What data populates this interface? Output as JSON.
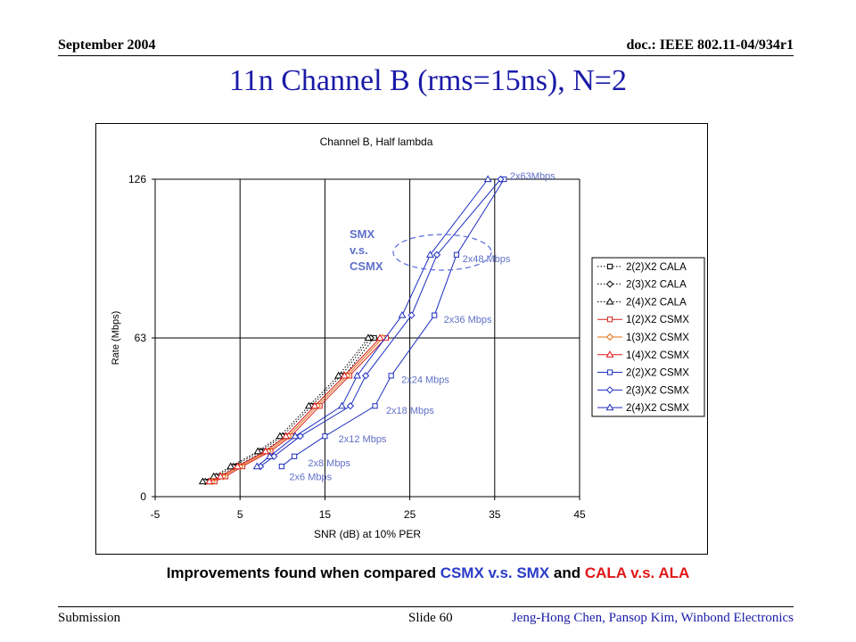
{
  "header": {
    "date": "September 2004",
    "doc_id": "doc.: IEEE 802.11-04/934r1"
  },
  "slide_title": "11n Channel B (rms=15ns), N=2",
  "caption": {
    "parts": [
      {
        "text": "Improvements found when compared ",
        "color": "#000000"
      },
      {
        "text": "CSMX v.s. SMX",
        "color": "#2a3cc8"
      },
      {
        "text": " and ",
        "color": "#000000"
      },
      {
        "text": "CALA v.s. ALA",
        "color": "#e01818"
      }
    ]
  },
  "footer": {
    "left": "Submission",
    "center": "Slide 60",
    "right": "Jeng-Hong Chen, Pansop Kim, Winbond Electronics"
  },
  "colors": {
    "cala": "#000000",
    "csmx1_square": "#d42020",
    "csmx1_diamond": "#e07010",
    "csmx1_triangle": "#e01818",
    "csmx2": "#1f2fc0",
    "annotation": "#6070c8",
    "ellipse": "#5a6ae0"
  },
  "chart_data": {
    "type": "line",
    "title": "Channel B, Half lambda",
    "xlabel": "SNR (dB) at 10% PER",
    "ylabel": "Rate (Mbps)",
    "xlim": [
      -5,
      45
    ],
    "ylim": [
      0,
      126
    ],
    "xticks": [
      -5,
      5,
      15,
      25,
      35,
      45
    ],
    "yticks": [
      0,
      63,
      126
    ],
    "grid": true,
    "legend_position": "right",
    "series": [
      {
        "name": "2(2)X2 CALA",
        "color": "#000000",
        "marker": "square",
        "dash": "dotted",
        "x": [
          1.2,
          2.6,
          4.6,
          7.8,
          10.4,
          13.8,
          17.3,
          20.8
        ],
        "y": [
          6,
          8,
          12,
          18,
          24,
          36,
          48,
          63
        ]
      },
      {
        "name": "2(3)X2 CALA",
        "color": "#000000",
        "marker": "diamond",
        "dash": "dotted",
        "x": [
          0.9,
          2.2,
          4.2,
          7.4,
          10.0,
          13.4,
          16.9,
          20.4
        ],
        "y": [
          6,
          8,
          12,
          18,
          24,
          36,
          48,
          63
        ]
      },
      {
        "name": "2(4)X2 CALA",
        "color": "#000000",
        "marker": "triangle",
        "dash": "dotted",
        "x": [
          0.6,
          1.9,
          3.9,
          7.1,
          9.7,
          13.1,
          16.6,
          20.1
        ],
        "y": [
          6,
          8,
          12,
          18,
          24,
          36,
          48,
          63
        ]
      },
      {
        "name": "1(2)X2 CSMX",
        "color": "#d42020",
        "marker": "square",
        "dash": "solid",
        "x": [
          2.0,
          3.3,
          5.3,
          8.6,
          11.0,
          14.4,
          17.9,
          22.2
        ],
        "y": [
          6,
          8,
          12,
          18,
          24,
          36,
          48,
          63
        ]
      },
      {
        "name": "1(3)X2 CSMX",
        "color": "#e07010",
        "marker": "diamond",
        "dash": "solid",
        "x": [
          1.7,
          3.0,
          5.0,
          8.3,
          10.7,
          14.1,
          17.6,
          21.8
        ],
        "y": [
          6,
          8,
          12,
          18,
          24,
          36,
          48,
          63
        ]
      },
      {
        "name": "1(4)X2 CSMX",
        "color": "#e01818",
        "marker": "triangle",
        "dash": "solid",
        "x": [
          1.4,
          2.7,
          4.7,
          8.0,
          10.4,
          13.8,
          17.3,
          21.5
        ],
        "y": [
          6,
          8,
          12,
          18,
          24,
          36,
          48,
          63
        ]
      },
      {
        "name": "2(2)X2 CSMX",
        "color": "#1f2fc0",
        "marker": "square",
        "dash": "solid",
        "x": [
          9.9,
          11.4,
          15.0,
          20.9,
          22.8,
          27.9,
          30.5,
          36.1
        ],
        "y": [
          12,
          16,
          24,
          36,
          48,
          72,
          96,
          126
        ]
      },
      {
        "name": "2(3)X2 CSMX",
        "color": "#1f2fc0",
        "marker": "diamond",
        "dash": "solid",
        "x": [
          7.4,
          9.0,
          12.1,
          18.0,
          19.8,
          25.2,
          28.2,
          35.7
        ],
        "y": [
          12,
          16,
          24,
          36,
          48,
          72,
          96,
          126
        ]
      },
      {
        "name": "2(4)X2 CSMX",
        "color": "#1f2fc0",
        "marker": "triangle",
        "dash": "solid",
        "x": [
          7.0,
          8.5,
          11.5,
          17.0,
          18.8,
          24.1,
          27.4,
          34.2
        ],
        "y": [
          12,
          16,
          24,
          36,
          48,
          72,
          96,
          126
        ]
      }
    ],
    "annotations": [
      {
        "text": "2x6 Mbps",
        "x": 10.8,
        "y": 8.0
      },
      {
        "text": "2x8 Mbps",
        "x": 13.0,
        "y": 13.5
      },
      {
        "text": "2x12 Mbps",
        "x": 16.6,
        "y": 23.0
      },
      {
        "text": "2x18 Mbps",
        "x": 22.2,
        "y": 34.3
      },
      {
        "text": "2x24 Mbps",
        "x": 24.0,
        "y": 46.5
      },
      {
        "text": "2x36 Mbps",
        "x": 29.0,
        "y": 70.5
      },
      {
        "text": "2x48 Mbps",
        "x": 31.2,
        "y": 94.5
      },
      {
        "text": "2x63Mbps",
        "x": 36.8,
        "y": 127.5
      }
    ],
    "ellipse_label": [
      "SMX",
      "v.s.",
      "CSMX"
    ]
  }
}
